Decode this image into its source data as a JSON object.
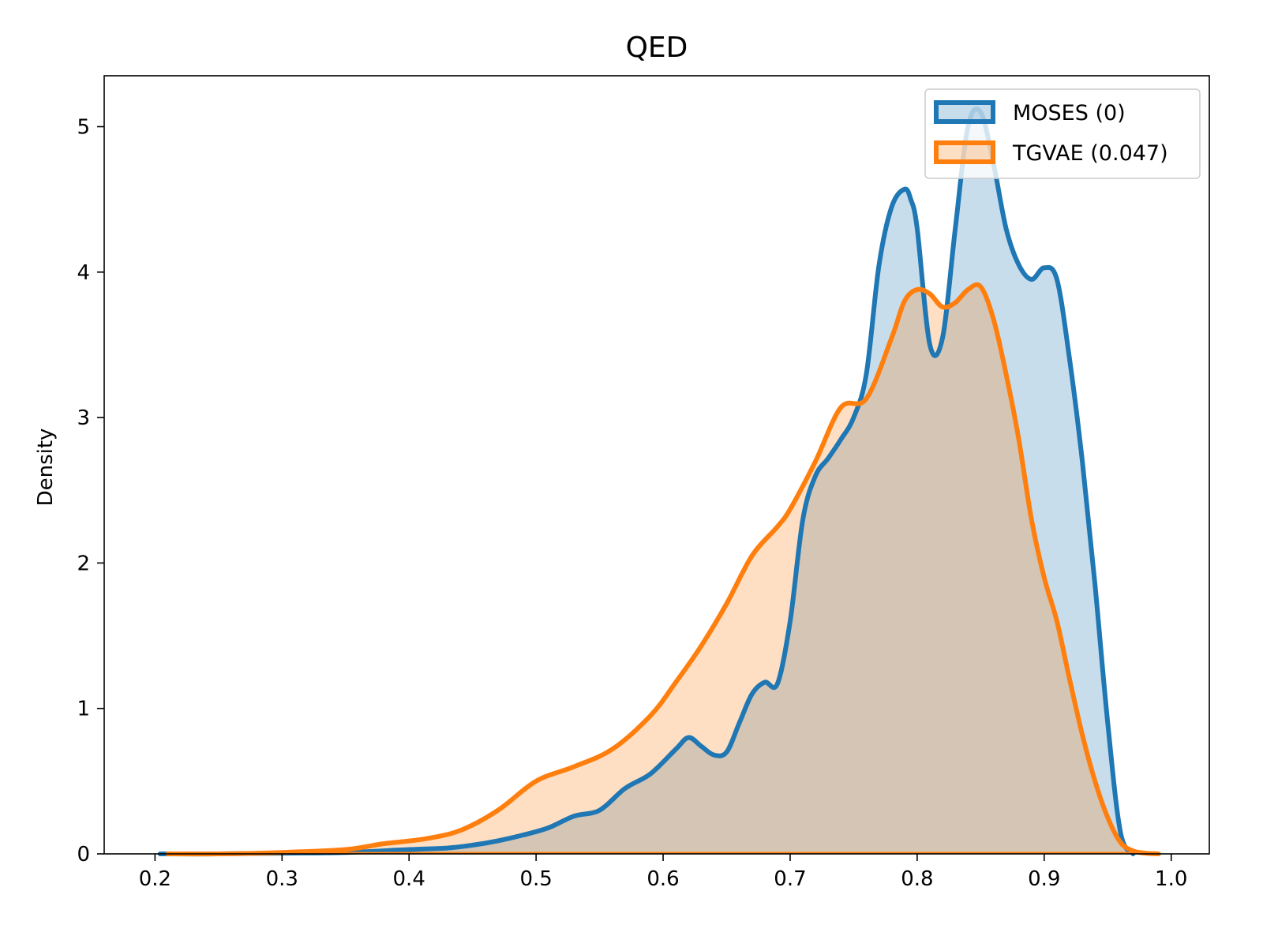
{
  "chart_data": {
    "type": "area",
    "title": "QED",
    "xlabel": "",
    "ylabel": "Density",
    "xlim": [
      0.16,
      1.03
    ],
    "ylim": [
      0,
      5.35
    ],
    "xticks": [
      0.2,
      0.3,
      0.4,
      0.5,
      0.6,
      0.7,
      0.8,
      0.9,
      1.0
    ],
    "xtick_labels": [
      "0.2",
      "0.3",
      "0.4",
      "0.5",
      "0.6",
      "0.7",
      "0.8",
      "0.9",
      "1.0"
    ],
    "yticks": [
      0,
      1,
      2,
      3,
      4,
      5
    ],
    "ytick_labels": [
      "0",
      "1",
      "2",
      "3",
      "4",
      "5"
    ],
    "grid": false,
    "legend_position": "top-right",
    "series": [
      {
        "name": "MOSES (0)",
        "color": "#1f77b4",
        "fill": "#c6dbed",
        "x": [
          0.204,
          0.25,
          0.3,
          0.35,
          0.4,
          0.43,
          0.45,
          0.47,
          0.49,
          0.51,
          0.53,
          0.55,
          0.57,
          0.59,
          0.61,
          0.62,
          0.63,
          0.64,
          0.65,
          0.66,
          0.67,
          0.68,
          0.69,
          0.7,
          0.71,
          0.72,
          0.73,
          0.74,
          0.75,
          0.76,
          0.77,
          0.78,
          0.79,
          0.795,
          0.8,
          0.81,
          0.82,
          0.83,
          0.84,
          0.85,
          0.86,
          0.87,
          0.88,
          0.89,
          0.9,
          0.91,
          0.92,
          0.93,
          0.94,
          0.95,
          0.96,
          0.97
        ],
        "y": [
          0.0,
          0.0,
          0.005,
          0.01,
          0.03,
          0.04,
          0.06,
          0.09,
          0.13,
          0.18,
          0.26,
          0.3,
          0.45,
          0.55,
          0.72,
          0.8,
          0.74,
          0.68,
          0.7,
          0.9,
          1.1,
          1.18,
          1.17,
          1.6,
          2.3,
          2.6,
          2.72,
          2.85,
          3.0,
          3.3,
          4.05,
          4.45,
          4.57,
          4.5,
          4.3,
          3.5,
          3.55,
          4.3,
          5.0,
          5.1,
          4.75,
          4.3,
          4.05,
          3.95,
          4.03,
          3.95,
          3.4,
          2.7,
          1.85,
          0.9,
          0.15,
          0.0
        ]
      },
      {
        "name": "TGVAE (0.047)",
        "color": "#ff7f0e",
        "fill": "#ffdec3",
        "x": [
          0.21,
          0.25,
          0.3,
          0.35,
          0.38,
          0.41,
          0.44,
          0.47,
          0.5,
          0.53,
          0.56,
          0.59,
          0.61,
          0.63,
          0.65,
          0.67,
          0.69,
          0.7,
          0.72,
          0.74,
          0.76,
          0.78,
          0.79,
          0.8,
          0.81,
          0.82,
          0.83,
          0.84,
          0.85,
          0.86,
          0.87,
          0.88,
          0.89,
          0.9,
          0.91,
          0.92,
          0.93,
          0.94,
          0.95,
          0.96,
          0.97,
          0.98,
          0.99
        ],
        "y": [
          0.0,
          0.0,
          0.01,
          0.03,
          0.07,
          0.1,
          0.16,
          0.3,
          0.5,
          0.6,
          0.72,
          0.95,
          1.18,
          1.43,
          1.72,
          2.05,
          2.25,
          2.37,
          2.7,
          3.07,
          3.13,
          3.55,
          3.8,
          3.88,
          3.85,
          3.76,
          3.79,
          3.88,
          3.9,
          3.68,
          3.3,
          2.85,
          2.3,
          1.9,
          1.6,
          1.2,
          0.82,
          0.5,
          0.25,
          0.08,
          0.02,
          0.005,
          0.0
        ]
      }
    ]
  }
}
